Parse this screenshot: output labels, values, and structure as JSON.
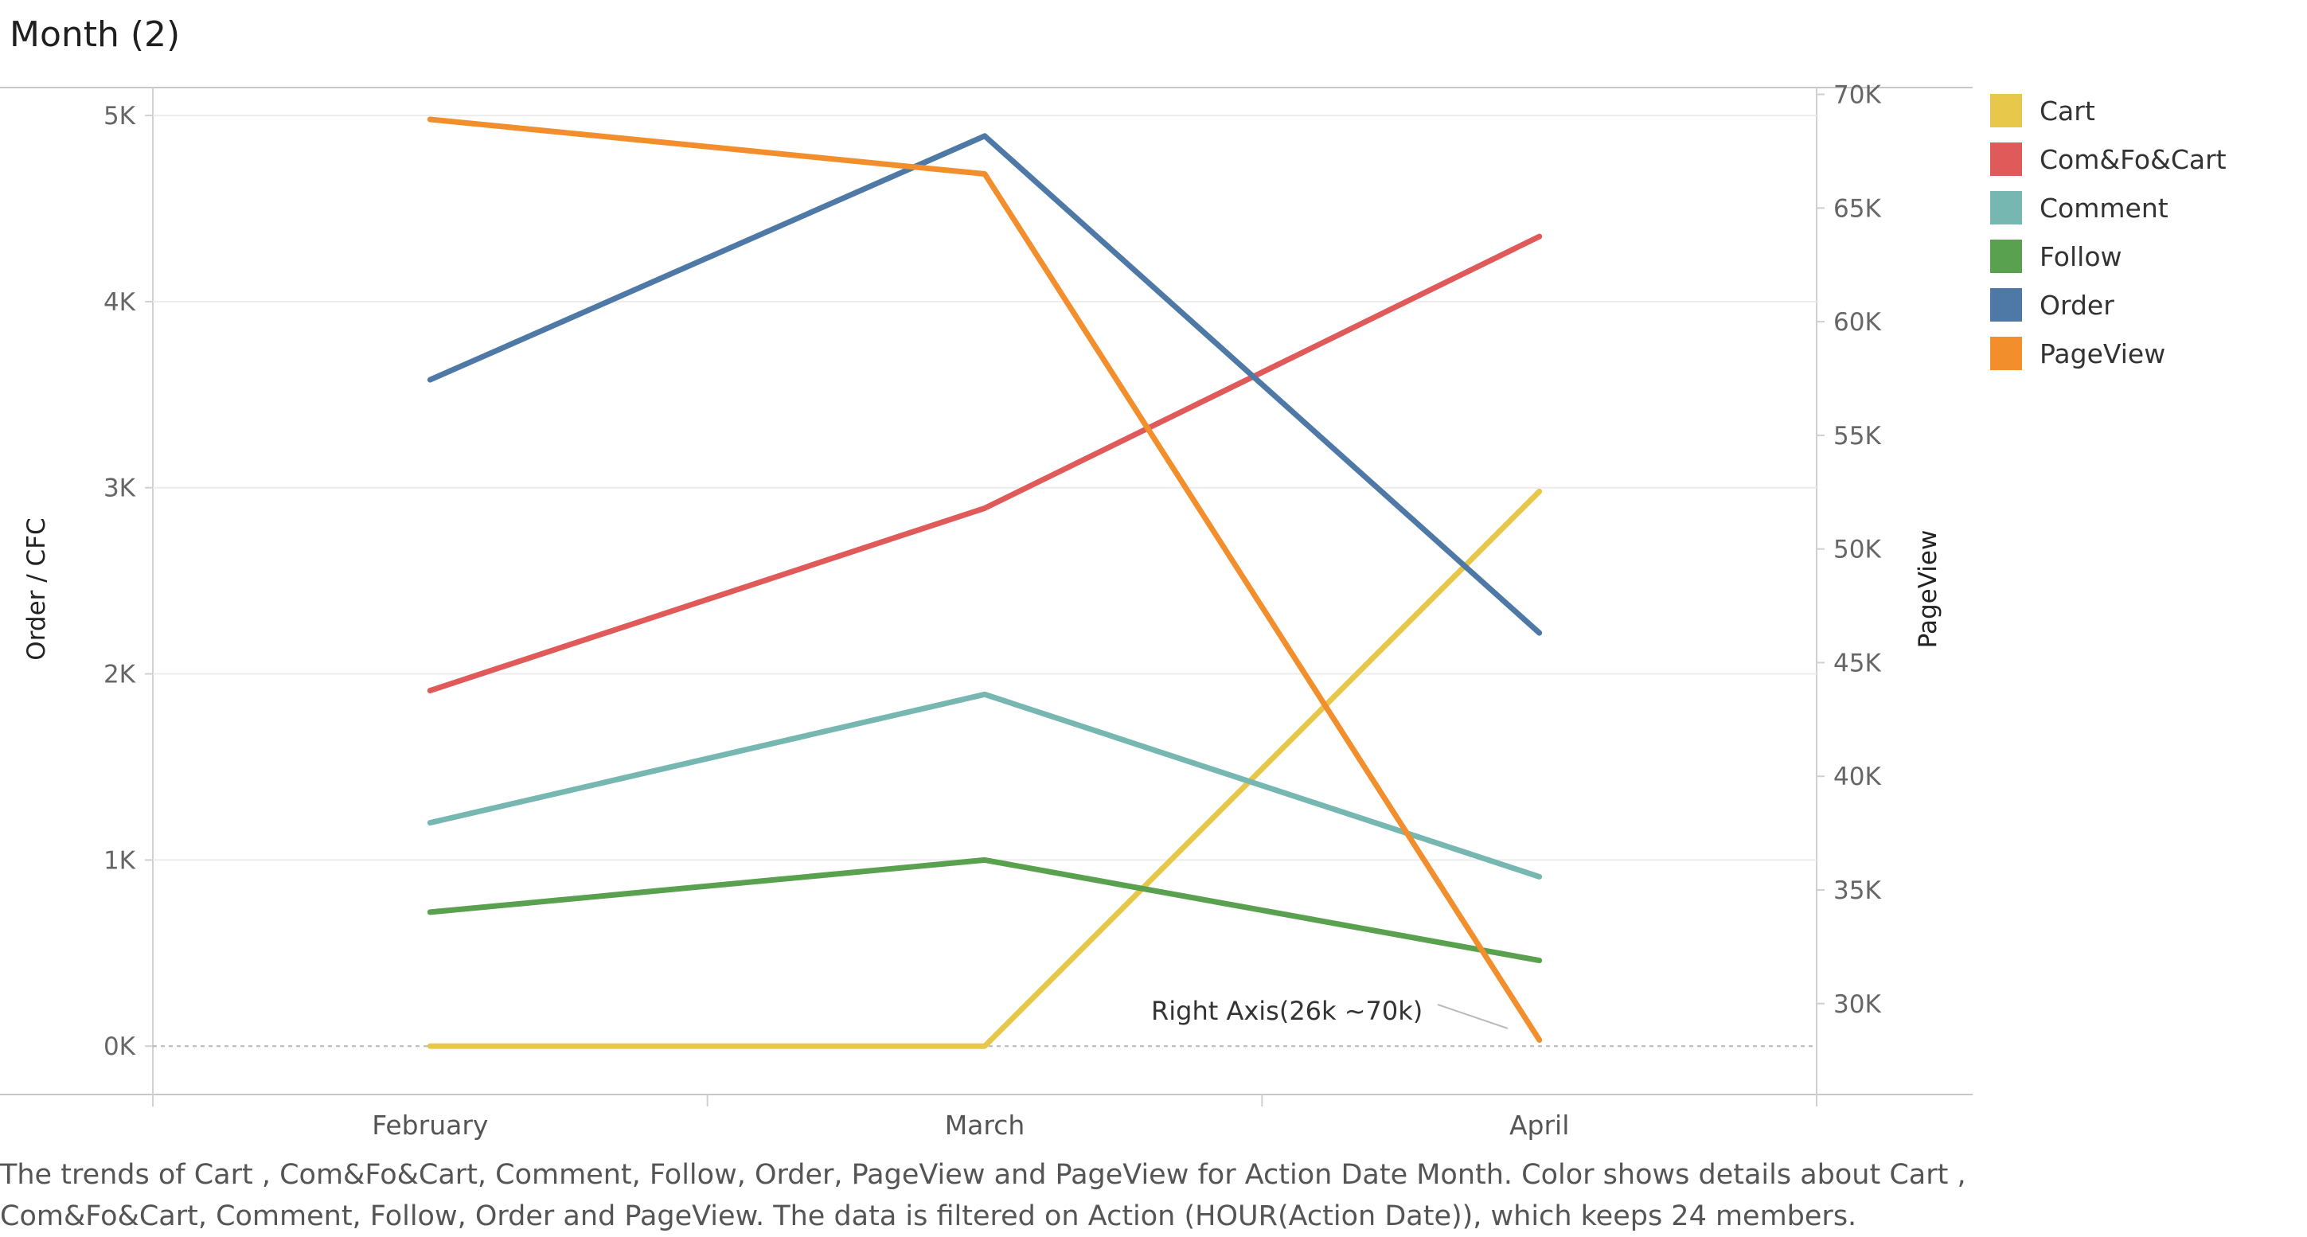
{
  "title": "Month (2)",
  "caption": "The trends of Cart , Com&Fo&Cart, Comment, Follow, Order, PageView and PageView for Action Date Month.  Color shows details about Cart , Com&Fo&Cart, Comment, Follow, Order and PageView. The data is filtered on Action (HOUR(Action Date)), which keeps 24 members.",
  "annotation": "Right Axis(26k ~70k)",
  "chart_data": {
    "type": "line",
    "categories": [
      "February",
      "March",
      "April"
    ],
    "left_axis": {
      "label": "Order / CFC",
      "range": [
        -260,
        5150
      ],
      "ticks": [
        0,
        1000,
        2000,
        3000,
        4000,
        5000
      ],
      "tick_labels": [
        "0K",
        "1K",
        "2K",
        "3K",
        "4K",
        "5K"
      ]
    },
    "right_axis": {
      "label": "PageView",
      "range": [
        26000,
        70300
      ],
      "ticks": [
        30000,
        35000,
        40000,
        45000,
        50000,
        55000,
        60000,
        65000,
        70000
      ],
      "tick_labels": [
        "30K",
        "35K",
        "40K",
        "45K",
        "50K",
        "55K",
        "60K",
        "65K",
        "70K"
      ]
    },
    "series": [
      {
        "name": "Cart",
        "axis": "left",
        "color": "#e8c84a",
        "values": [
          0,
          0,
          2980
        ]
      },
      {
        "name": "Com&Fo&Cart",
        "axis": "left",
        "color": "#e05a5a",
        "values": [
          1910,
          2890,
          4350
        ]
      },
      {
        "name": "Comment",
        "axis": "left",
        "color": "#76b7b2",
        "values": [
          1200,
          1890,
          910
        ]
      },
      {
        "name": "Follow",
        "axis": "left",
        "color": "#59a14f",
        "values": [
          720,
          1000,
          460
        ]
      },
      {
        "name": "Order",
        "axis": "left",
        "color": "#4e79a7",
        "values": [
          3580,
          4890,
          2220
        ]
      },
      {
        "name": "PageView",
        "axis": "right",
        "color": "#f28e2b",
        "values": [
          68900,
          66500,
          28400
        ]
      }
    ],
    "legend_position": "right",
    "grid": true
  }
}
